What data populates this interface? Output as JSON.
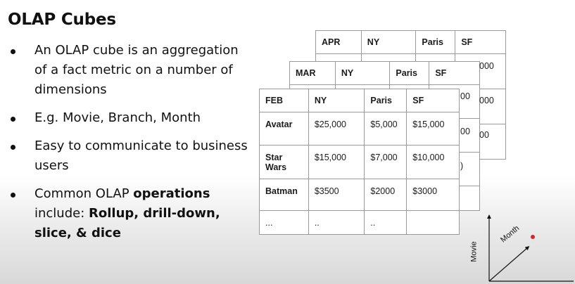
{
  "slide": {
    "title": "OLAP Cubes",
    "bullets": [
      {
        "segments": [
          {
            "text": "An OLAP cube is an aggregation of a fact metric on a number of dimensions",
            "bold": false
          }
        ]
      },
      {
        "segments": [
          {
            "text": "E.g. Movie, Branch, Month",
            "bold": false
          }
        ]
      },
      {
        "segments": [
          {
            "text": "Easy to communicate to business users",
            "bold": false
          }
        ]
      },
      {
        "segments": [
          {
            "text": "Common OLAP ",
            "bold": false
          },
          {
            "text": "operations",
            "bold": true
          },
          {
            "text": " include: ",
            "bold": false
          },
          {
            "text": "Rollup, drill-down, slice, & dice",
            "bold": true
          }
        ]
      }
    ]
  },
  "tables": {
    "apr": {
      "headers": [
        "APR",
        "NY",
        "Paris",
        "SF"
      ]
    },
    "mar": {
      "headers": [
        "MAR",
        "NY",
        "Paris",
        "SF"
      ]
    },
    "feb": {
      "headers": [
        "FEB",
        "NY",
        "Paris",
        "SF"
      ],
      "rows": [
        [
          "Avatar",
          "$25,000",
          "$5,000",
          "$15,000"
        ],
        [
          "Star Wars",
          "$15,000",
          "$7,000",
          "$10,000"
        ],
        [
          "Batman",
          "$3500",
          "$2000",
          "$3000"
        ],
        [
          "...",
          "..",
          "..",
          ""
        ]
      ]
    }
  },
  "peek_text": {
    "apr_r1": "000",
    "apr_r2": "000",
    "mar_r1": "00",
    "mar_r2": "00",
    "mar_r1b": "00",
    "mar_r3": ")"
  },
  "axis": {
    "y_label": "Movie",
    "z_label": "Month",
    "point_color": "#d62828"
  }
}
